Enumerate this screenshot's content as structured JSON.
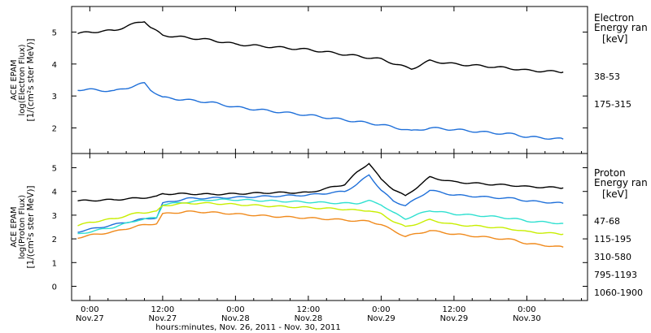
{
  "colors": {
    "background": "#ffffff",
    "axis": "#000000",
    "e_38_53": "#000000",
    "e_175_315": "#1e6fd9",
    "p_47_68": "#000000",
    "p_115_195": "#1e6fd9",
    "p_310_580": "#2fe0d0",
    "p_795_1193": "#c8ee00",
    "p_1060_1900": "#f08a1c"
  },
  "chart_data": [
    {
      "type": "line",
      "panel": "electron",
      "ylabel_lines": [
        "ACE EPAM",
        "log(Electron Flux)",
        "[1/(cm²s ster MeV)]"
      ],
      "ylim": [
        1.2,
        5.8
      ],
      "yticks": [
        2,
        3,
        4,
        5
      ],
      "ytick_labels": [
        "2",
        "3",
        "4",
        "5"
      ],
      "legend_title_lines": [
        "Electron",
        "Energy ran",
        "[keV]"
      ],
      "legend_placement": "right",
      "x": [
        -2,
        0,
        4,
        8,
        9,
        10,
        12,
        20,
        24,
        36,
        48,
        52,
        53,
        56,
        60,
        66,
        70,
        72,
        78
      ],
      "series": [
        {
          "name": "38-53",
          "color_key": "e_38_53",
          "values": [
            4.95,
            5.0,
            5.05,
            5.3,
            5.35,
            5.15,
            4.9,
            4.75,
            4.62,
            4.45,
            4.15,
            3.9,
            3.85,
            4.1,
            4.0,
            3.92,
            3.85,
            3.8,
            3.75
          ]
        },
        {
          "name": "175-315",
          "color_key": "e_175_315",
          "values": [
            3.2,
            3.2,
            3.15,
            3.35,
            3.4,
            3.2,
            2.95,
            2.8,
            2.65,
            2.4,
            2.1,
            1.95,
            1.9,
            2.0,
            1.95,
            1.85,
            1.8,
            1.72,
            1.65
          ]
        }
      ]
    },
    {
      "type": "line",
      "panel": "proton",
      "ylabel_lines": [
        "ACE EPAM",
        "log(Proton Flux)",
        "[1/(cm²s ster MeV)]"
      ],
      "ylim": [
        -0.6,
        5.6
      ],
      "yticks": [
        0,
        1,
        2,
        3,
        4,
        5
      ],
      "ytick_labels": [
        "0",
        "1",
        "2",
        "3",
        "4",
        "5"
      ],
      "legend_title_lines": [
        "Proton",
        "Energy ran",
        "[keV]"
      ],
      "legend_placement": "right",
      "x": [
        -2,
        0,
        4,
        8,
        11,
        12,
        16,
        20,
        24,
        30,
        36,
        42,
        44,
        46,
        48,
        50,
        52,
        56,
        60,
        66,
        70,
        72,
        78
      ],
      "series": [
        {
          "name": "47-68",
          "color_key": "p_47_68",
          "values": [
            3.6,
            3.62,
            3.65,
            3.72,
            3.78,
            3.9,
            3.9,
            3.88,
            3.9,
            3.95,
            3.95,
            4.3,
            4.8,
            5.2,
            4.5,
            4.1,
            3.8,
            4.6,
            4.4,
            4.3,
            4.25,
            4.2,
            4.15
          ]
        },
        {
          "name": "115-195",
          "color_key": "p_115_195",
          "values": [
            2.3,
            2.4,
            2.6,
            2.8,
            2.9,
            3.5,
            3.7,
            3.72,
            3.75,
            3.8,
            3.85,
            4.0,
            4.3,
            4.7,
            4.05,
            3.6,
            3.4,
            4.05,
            3.85,
            3.75,
            3.7,
            3.6,
            3.5
          ]
        },
        {
          "name": "310-580",
          "color_key": "p_310_580",
          "values": [
            2.2,
            2.3,
            2.5,
            2.8,
            2.9,
            3.45,
            3.55,
            3.65,
            3.65,
            3.6,
            3.55,
            3.5,
            3.5,
            3.6,
            3.45,
            3.1,
            2.85,
            3.2,
            3.05,
            2.95,
            2.85,
            2.75,
            2.65
          ]
        },
        {
          "name": "795-1193",
          "color_key": "p_795_1193",
          "values": [
            2.55,
            2.7,
            2.85,
            3.1,
            3.15,
            3.4,
            3.5,
            3.5,
            3.45,
            3.38,
            3.32,
            3.25,
            3.2,
            3.2,
            3.05,
            2.75,
            2.5,
            2.8,
            2.6,
            2.5,
            2.4,
            2.3,
            2.2
          ]
        },
        {
          "name": "1060-1900",
          "color_key": "p_1060_1900",
          "values": [
            2.05,
            2.15,
            2.3,
            2.55,
            2.65,
            3.05,
            3.15,
            3.12,
            3.05,
            2.95,
            2.88,
            2.8,
            2.75,
            2.75,
            2.6,
            2.35,
            2.1,
            2.35,
            2.2,
            2.05,
            1.95,
            1.8,
            1.65
          ]
        }
      ]
    }
  ],
  "x_axis": {
    "xlim": [
      -3,
      82
    ],
    "ticks": [
      0,
      12,
      24,
      36,
      48,
      60,
      72
    ],
    "tick_labels": [
      {
        "time": "0:00",
        "date": "Nov.27"
      },
      {
        "time": "12:00",
        "date": "Nov.27"
      },
      {
        "time": "0:00",
        "date": "Nov.28"
      },
      {
        "time": "12:00",
        "date": "Nov.28"
      },
      {
        "time": "0:00",
        "date": "Nov.29"
      },
      {
        "time": "12:00",
        "date": "Nov.29"
      },
      {
        "time": "0:00",
        "date": "Nov.30"
      }
    ],
    "label": "hours:minutes, Nov. 26, 2011 - Nov. 30, 2011"
  }
}
